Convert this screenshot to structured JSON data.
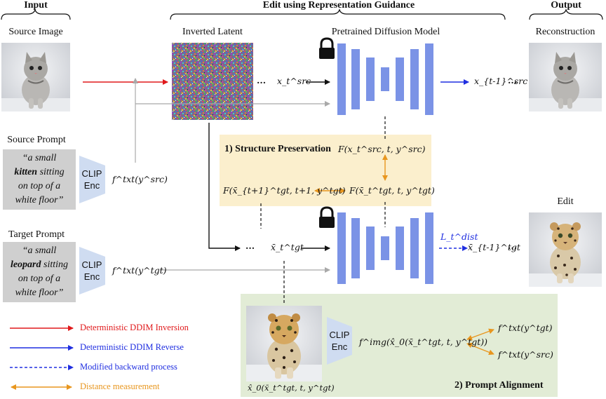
{
  "headers": {
    "input": "Input",
    "edit": "Edit using Representation Guidance",
    "output": "Output"
  },
  "labels": {
    "source_image": "Source Image",
    "inverted_latent": "Inverted Latent",
    "pretrained_model": "Pretrained Diffusion Model",
    "reconstruction": "Reconstruction",
    "edit": "Edit",
    "source_prompt": "Source Prompt",
    "target_prompt": "Target Prompt"
  },
  "prompts": {
    "source": {
      "pre": "“a small",
      "bold": "kitten",
      "post1": " sitting",
      "line3": "on top of a",
      "line4": "white floor”"
    },
    "target": {
      "pre": "“a small",
      "bold": "leopard",
      "post1": " sitting",
      "line3": "on top of a",
      "line4": "white floor”"
    }
  },
  "clip": {
    "line1": "CLIP",
    "line2": "Enc"
  },
  "math": {
    "ftxt_src": "f^txt(y^src)",
    "ftxt_tgt": "f^txt(y^tgt)",
    "x_src": "x_t^src",
    "x_src_prev": "x_{t-1}^src",
    "x_tgt": "x̄_t^tgt",
    "x_tgt_prev": "x̄_{t-1}^tgt",
    "F_src": "F(x_t^src, t, y^src)",
    "F_tgt_next": "F(x̄_{t+1}^tgt, t+1, y^tgt)",
    "F_tgt": "F(x̄_t^tgt, t, y^tgt)",
    "L_dist": "L_t^dist",
    "f_img": "f^img(x̂_0(x̄_t^tgt, t, y^tgt))",
    "x0_hat": "x̂_0(x̄_t^tgt, t, y^tgt)",
    "ellipsis": "···"
  },
  "sections": {
    "structure": "1) Structure Preservation",
    "prompt_alignment": "2) Prompt Alignment"
  },
  "legend": [
    {
      "text": "Deterministic DDIM Inversion",
      "color": "#e0191b",
      "style": "solid-arrow"
    },
    {
      "text": "Deterministic DDIM Reverse",
      "color": "#1f2ee0",
      "style": "solid-arrow"
    },
    {
      "text": "Modified backward process",
      "color": "#1f2ee0",
      "style": "dashed-arrow"
    },
    {
      "text": "Distance measurement",
      "color": "#e8961e",
      "style": "double-arrow"
    }
  ],
  "colors": {
    "unet_blue": "#7b93e6",
    "structure_bg": "#fbefcd",
    "alignment_bg": "#e2ecd6",
    "clip_blue": "#cfdcf1",
    "prompt_gray": "#cfcfcf",
    "orange": "#e8961e",
    "red": "#e0191b",
    "blue": "#1f2ee0",
    "gray_arrow": "#a9a9a9"
  },
  "icons": [
    "lock-icon",
    "kitten-image",
    "leopard-image",
    "noise-latent-image"
  ]
}
